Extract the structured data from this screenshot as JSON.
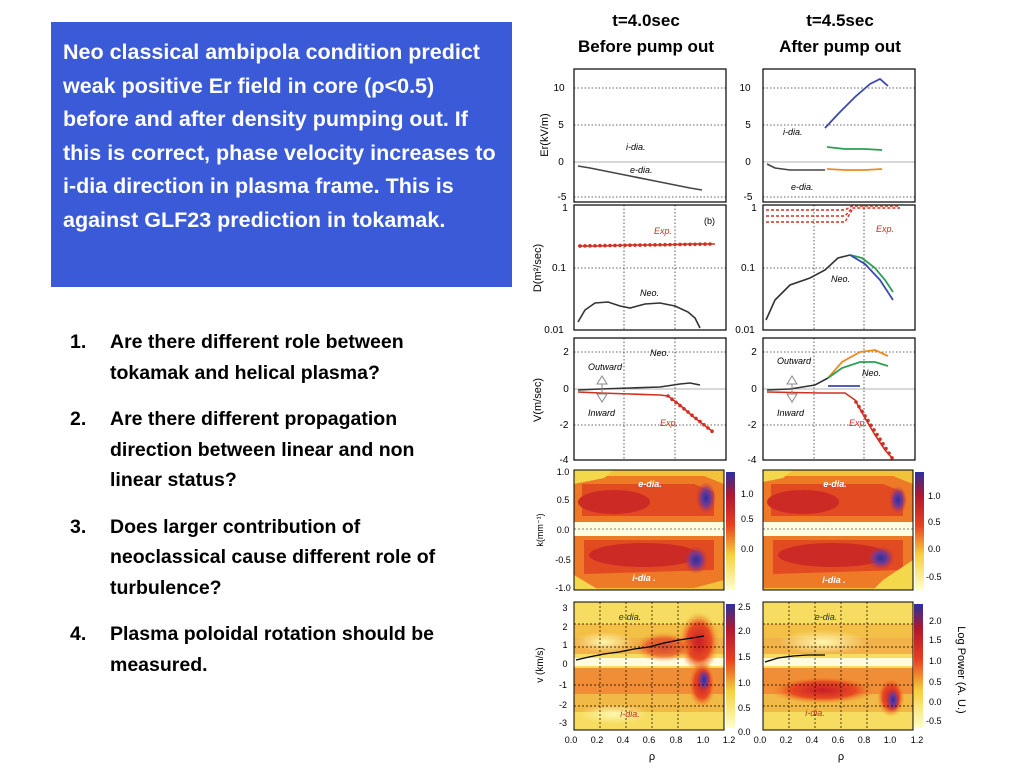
{
  "text_box": {
    "text": "Neo classical ambipola condition predict weak positive Er field in core (ρ<0.5) before and after density pumping out. If this is correct, phase velocity increases to i-dia direction in plasma frame. This is against GLF23 prediction in tokamak.",
    "bg_color": "#3a5ad8"
  },
  "questions": [
    {
      "num": "1.",
      "text": "Are there different role between tokamak and helical plasma?"
    },
    {
      "num": "2.",
      "text": "Are there different propagation direction between linear and non linear status?"
    },
    {
      "num": "3.",
      "text": "Does larger contribution of neoclassical cause different role of turbulence?"
    },
    {
      "num": "4.",
      "text": "Plasma poloidal rotation should be measured."
    }
  ],
  "columns": [
    {
      "time": "t=4.0sec",
      "label": "Before pump out"
    },
    {
      "time": "t=4.5sec",
      "label": "After pump out"
    }
  ],
  "figure": {
    "labels": {
      "er_axis": "Er(kV/m)",
      "d_axis": "D(m²/sec)",
      "v_axis": "V(m/sec)",
      "k_axis": "k(mm⁻¹)",
      "vph_axis": "v (km/s)",
      "rho": "ρ",
      "cbar_title": "Log  Power  (A. U.)",
      "i_dia": "i-dia.",
      "e_dia": "e-dia.",
      "i_dia_map": "i-dia .",
      "exp": "Exp.",
      "neo": "Neo.",
      "outward": "Outward",
      "inward": "Inward",
      "panel_b": "(b)"
    },
    "er_ticks": [
      "10",
      "5",
      "0",
      "-5"
    ],
    "d_ticks": [
      "1",
      "0.1",
      "0.01"
    ],
    "v_ticks": [
      "2",
      "0",
      "-2",
      "-4"
    ],
    "k_ticks": [
      "1.0",
      "0.5",
      "0.0",
      "-0.5",
      "-1.0"
    ],
    "vph_ticks": [
      "3",
      "2",
      "1",
      "0",
      "-1",
      "-2",
      "-3"
    ],
    "rho_ticks": [
      "0.0",
      "0.2",
      "0.4",
      "0.6",
      "0.8",
      "1.0",
      "1.2"
    ],
    "cbar_k_left": [
      "1.0",
      "0.5",
      "0.0"
    ],
    "cbar_k_right": [
      "1.0",
      "0.5",
      "0.0",
      "-0.5"
    ],
    "cbar_v_left": [
      "2.5",
      "2.0",
      "1.5",
      "1.0",
      "0.5",
      "0.0"
    ],
    "cbar_v_right": [
      "2.0",
      "1.5",
      "1.0",
      "0.5",
      "0.0",
      "-0.5"
    ],
    "colors": {
      "exp": "#d03020",
      "neo": "#333333",
      "blue": "#3a48b0",
      "green": "#2aa050",
      "orange": "#f08a20"
    }
  }
}
